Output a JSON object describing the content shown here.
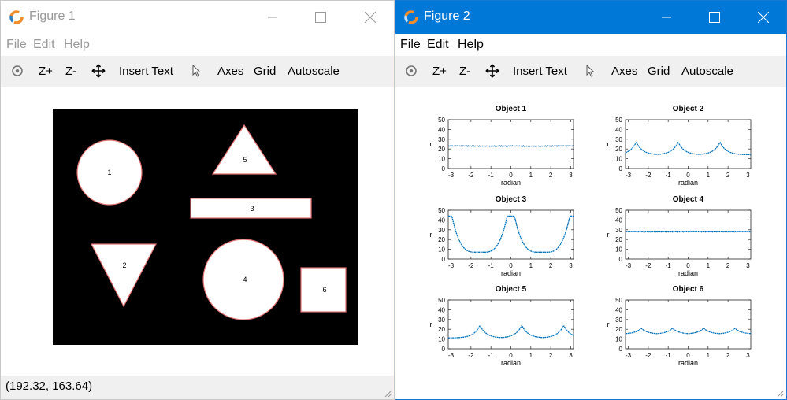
{
  "figure1": {
    "title": "Figure 1",
    "menu": [
      "File",
      "Edit",
      "Help"
    ],
    "toolbar": {
      "zoom_in": "Z+",
      "zoom_out": "Z-",
      "insert_text": "Insert Text",
      "axes": "Axes",
      "grid": "Grid",
      "autoscale": "Autoscale"
    },
    "status": "(192.32, 163.64)",
    "objects": [
      {
        "label": "1",
        "shape": "circle"
      },
      {
        "label": "2",
        "shape": "triangle-down"
      },
      {
        "label": "3",
        "shape": "rectangle"
      },
      {
        "label": "4",
        "shape": "circle"
      },
      {
        "label": "5",
        "shape": "triangle-up"
      },
      {
        "label": "6",
        "shape": "square"
      }
    ]
  },
  "figure2": {
    "title": "Figure 2",
    "menu": [
      "File",
      "Edit",
      "Help"
    ],
    "toolbar": {
      "zoom_in": "Z+",
      "zoom_out": "Z-",
      "insert_text": "Insert Text",
      "axes": "Axes",
      "grid": "Grid",
      "autoscale": "Autoscale"
    }
  },
  "colors": {
    "accent": "#0078d7",
    "series": "#0072bd",
    "outline": "#e07070"
  },
  "chart_data": [
    {
      "type": "line",
      "title": "Object 1",
      "xlabel": "radian",
      "ylabel": "r",
      "xlim": [
        -3.14,
        3.14
      ],
      "ylim": [
        0,
        50
      ],
      "xticks": [
        -3,
        -2,
        -1,
        0,
        1,
        2,
        3
      ],
      "yticks": [
        0,
        10,
        20,
        30,
        40,
        50
      ],
      "profile": "constant",
      "base": 23,
      "peak": 23,
      "peaks_x": []
    },
    {
      "type": "line",
      "title": "Object 2",
      "xlabel": "radian",
      "ylabel": "r",
      "xlim": [
        -3.14,
        3.14
      ],
      "ylim": [
        0,
        50
      ],
      "xticks": [
        -3,
        -2,
        -1,
        0,
        1,
        2,
        3
      ],
      "yticks": [
        0,
        10,
        20,
        30,
        40,
        50
      ],
      "profile": "peaks",
      "base": 14,
      "peak": 27,
      "peaks_x": [
        -2.6,
        -0.5,
        1.6
      ]
    },
    {
      "type": "line",
      "title": "Object 3",
      "xlabel": "radian",
      "ylabel": "r",
      "xlim": [
        -3.14,
        3.14
      ],
      "ylim": [
        0,
        50
      ],
      "xticks": [
        -3,
        -2,
        -1,
        0,
        1,
        2,
        3
      ],
      "yticks": [
        0,
        10,
        20,
        30,
        40,
        50
      ],
      "profile": "rect",
      "base": 7,
      "peak": 44,
      "peaks_x": [
        -3.14,
        0,
        3.14
      ]
    },
    {
      "type": "line",
      "title": "Object 4",
      "xlabel": "radian",
      "ylabel": "r",
      "xlim": [
        -3.14,
        3.14
      ],
      "ylim": [
        0,
        50
      ],
      "xticks": [
        -3,
        -2,
        -1,
        0,
        1,
        2,
        3
      ],
      "yticks": [
        0,
        10,
        20,
        30,
        40,
        50
      ],
      "profile": "constant",
      "base": 28,
      "peak": 28,
      "peaks_x": []
    },
    {
      "type": "line",
      "title": "Object 5",
      "xlabel": "radian",
      "ylabel": "r",
      "xlim": [
        -3.14,
        3.14
      ],
      "ylim": [
        0,
        50
      ],
      "xticks": [
        -3,
        -2,
        -1,
        0,
        1,
        2,
        3
      ],
      "yticks": [
        0,
        10,
        20,
        30,
        40,
        50
      ],
      "profile": "peaks",
      "base": 11,
      "peak": 24,
      "peaks_x": [
        -1.55,
        0.55,
        2.65
      ]
    },
    {
      "type": "line",
      "title": "Object 6",
      "xlabel": "radian",
      "ylabel": "r",
      "xlim": [
        -3.14,
        3.14
      ],
      "ylim": [
        0,
        50
      ],
      "xticks": [
        -3,
        -2,
        -1,
        0,
        1,
        2,
        3
      ],
      "yticks": [
        0,
        10,
        20,
        30,
        40,
        50
      ],
      "profile": "peaks",
      "base": 15,
      "peak": 21,
      "peaks_x": [
        -2.35,
        -0.78,
        0.78,
        2.35
      ]
    }
  ]
}
